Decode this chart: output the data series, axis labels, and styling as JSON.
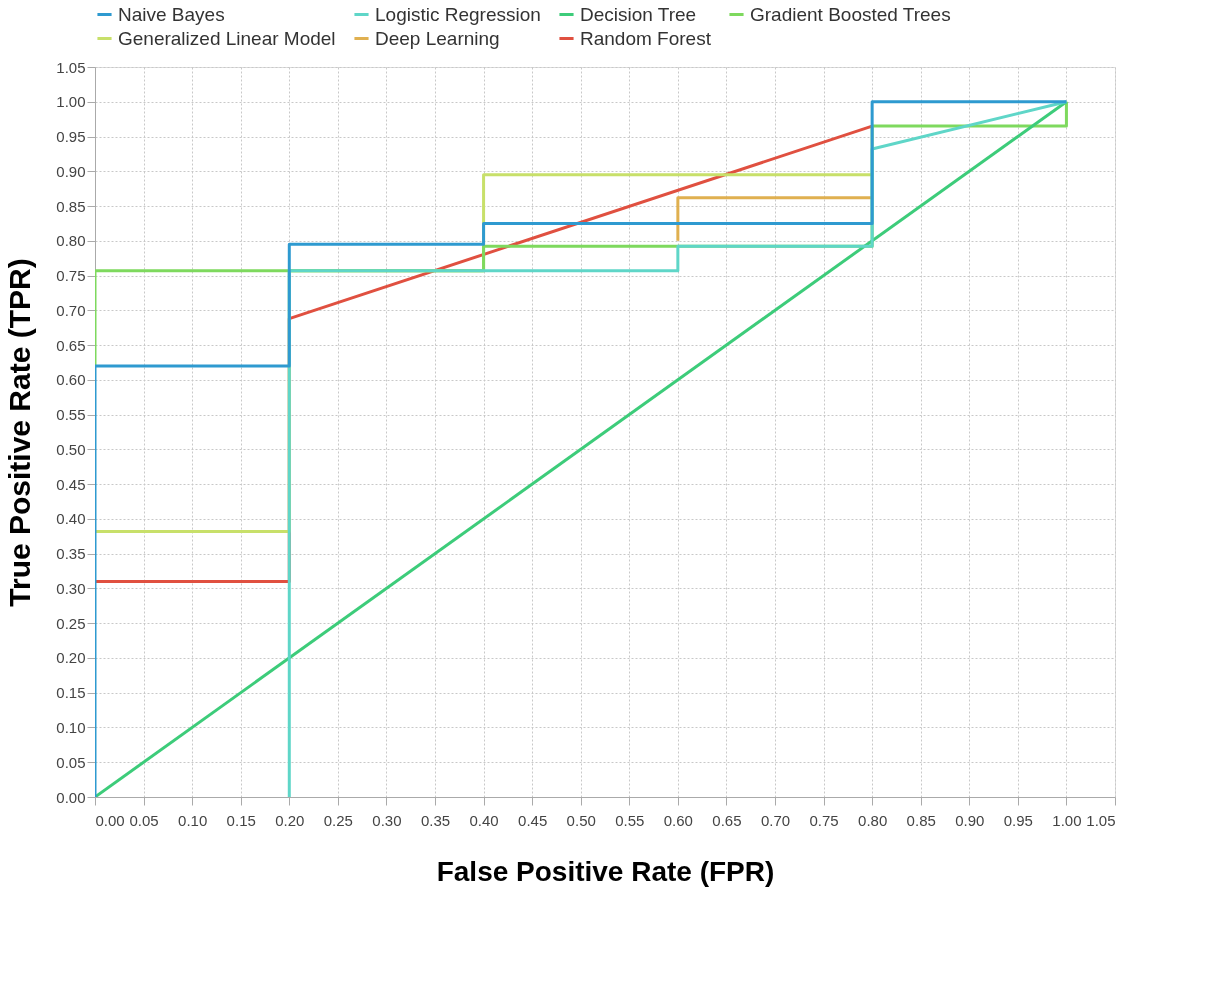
{
  "chart_data": {
    "type": "line",
    "xlabel": "False Positive Rate (FPR)",
    "ylabel": "True Positive Rate (TPR)",
    "series": [
      {
        "name": "Naive Bayes",
        "color": "#2e9ad0",
        "x": [
          0,
          0,
          0.2,
          0.2,
          0.4,
          0.4,
          0.8,
          0.8,
          1.0
        ],
        "values": [
          0,
          0.62,
          0.62,
          0.795,
          0.795,
          0.825,
          0.825,
          1.0,
          1.0
        ]
      },
      {
        "name": "Logistic Regression",
        "color": "#5fd6c8",
        "x": [
          0.2,
          0.2,
          0.6,
          0.6,
          0.8,
          0.8,
          1.0
        ],
        "values": [
          0,
          0.757,
          0.757,
          0.792,
          0.792,
          0.932,
          1.0
        ]
      },
      {
        "name": "Decision Tree",
        "color": "#3dcc7a",
        "x": [
          0,
          1.0
        ],
        "values": [
          0,
          1.0
        ]
      },
      {
        "name": "Gradient Boosted Trees",
        "color": "#7ed95e",
        "x": [
          0,
          0,
          0.4,
          0.4,
          0.6,
          0.8,
          0.8,
          1.0,
          1.0
        ],
        "values": [
          0.62,
          0.757,
          0.757,
          0.792,
          0.792,
          0.792,
          0.965,
          0.965,
          1.0
        ]
      },
      {
        "name": "Generalized Linear Model",
        "color": "#c8e06a",
        "x": [
          0,
          0.2,
          0.2,
          0.4,
          0.4,
          0.8
        ],
        "values": [
          0.382,
          0.382,
          0.757,
          0.757,
          0.895,
          0.895
        ]
      },
      {
        "name": "Deep Learning",
        "color": "#e0b050",
        "x": [
          0.6,
          0.6,
          0.8
        ],
        "values": [
          0.8,
          0.862,
          0.862
        ]
      },
      {
        "name": "Random Forest",
        "color": "#e05040",
        "x": [
          0,
          0.2,
          0.2,
          0.8
        ],
        "values": [
          0.31,
          0.31,
          0.688,
          0.965
        ]
      }
    ],
    "xlim": [
      0,
      1.05
    ],
    "ylim": [
      0,
      1.05
    ],
    "xticks": [
      {
        "value": 0,
        "label": "0.00"
      },
      0.05,
      {
        "value": 0.1,
        "label": "0.10"
      },
      0.15,
      {
        "value": 0.2,
        "label": "0.20"
      },
      0.25,
      {
        "value": 0.3,
        "label": "0.30"
      },
      0.35,
      {
        "value": 0.4,
        "label": "0.40"
      },
      0.45,
      {
        "value": 0.5,
        "label": "0.50"
      },
      0.55,
      {
        "value": 0.6,
        "label": "0.60"
      },
      0.65,
      {
        "value": 0.7,
        "label": "0.70"
      },
      0.75,
      {
        "value": 0.8,
        "label": "0.80"
      },
      0.85,
      {
        "value": 0.9,
        "label": "0.90"
      },
      0.95,
      {
        "value": 1.0,
        "label": "1.00"
      },
      1.05
    ],
    "yticks": [
      {
        "value": 0,
        "label": "0.00"
      },
      0.05,
      {
        "value": 0.1,
        "label": "0.10"
      },
      0.15,
      {
        "value": 0.2,
        "label": "0.20"
      },
      0.25,
      {
        "value": 0.3,
        "label": "0.30"
      },
      0.35,
      {
        "value": 0.4,
        "label": "0.40"
      },
      0.45,
      {
        "value": 0.5,
        "label": "0.50"
      },
      0.55,
      {
        "value": 0.6,
        "label": "0.60"
      },
      0.65,
      {
        "value": 0.7,
        "label": "0.70"
      },
      0.75,
      {
        "value": 0.8,
        "label": "0.80"
      },
      0.85,
      {
        "value": 0.9,
        "label": "0.90"
      },
      0.95,
      {
        "value": 1.0,
        "label": "1.00"
      },
      1.05
    ],
    "grid": true,
    "legend": "top",
    "marker": "none",
    "line_style": "solid"
  }
}
